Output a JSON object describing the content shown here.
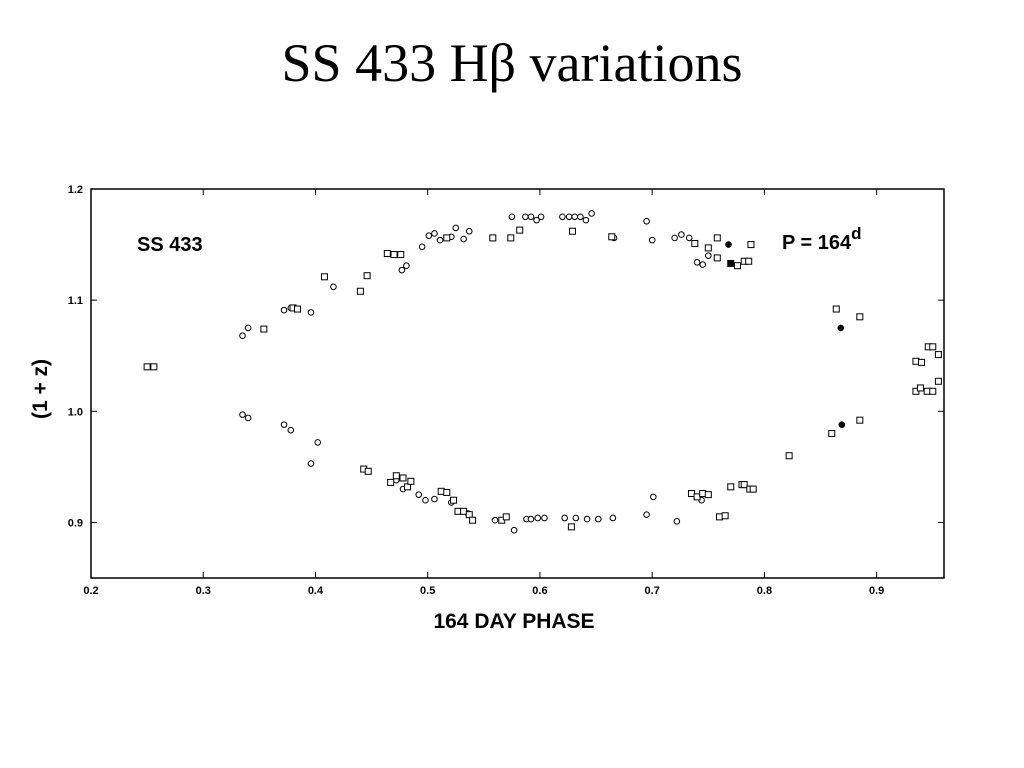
{
  "slide": {
    "title": "SS 433 Hβ variations"
  },
  "chart_data": {
    "type": "scatter",
    "title": "SS 433 Hβ variations",
    "xlabel": "164 DAY PHASE",
    "ylabel": "(1 + z)",
    "xlim": [
      0.2,
      0.96
    ],
    "ylim": [
      0.85,
      1.2
    ],
    "x_ticks": [
      0.2,
      0.3,
      0.4,
      0.5,
      0.6,
      0.7,
      0.8,
      0.9
    ],
    "x_tick_labels": [
      "0.2",
      "0.3",
      "0.4",
      "0.5",
      "0.6",
      "0.7",
      "0.8",
      "0.9"
    ],
    "y_ticks": [
      0.9,
      1.0,
      1.1,
      1.2
    ],
    "y_tick_labels": [
      "0.9",
      "1.0",
      "1.1",
      "1.2"
    ],
    "grid": false,
    "annotations": {
      "object": "SS 433",
      "period": "P = 164",
      "period_sup": "d"
    },
    "series": [
      {
        "marker": "circle",
        "points": [
          [
            0.335,
            1.068
          ],
          [
            0.34,
            1.075
          ],
          [
            0.372,
            1.091
          ],
          [
            0.378,
            1.093
          ],
          [
            0.396,
            1.089
          ],
          [
            0.416,
            1.112
          ],
          [
            0.477,
            1.127
          ],
          [
            0.481,
            1.131
          ],
          [
            0.495,
            1.148
          ],
          [
            0.501,
            1.158
          ],
          [
            0.506,
            1.16
          ],
          [
            0.511,
            1.154
          ],
          [
            0.521,
            1.157
          ],
          [
            0.525,
            1.165
          ],
          [
            0.532,
            1.155
          ],
          [
            0.537,
            1.162
          ],
          [
            0.575,
            1.175
          ],
          [
            0.587,
            1.175
          ],
          [
            0.592,
            1.175
          ],
          [
            0.597,
            1.172
          ],
          [
            0.601,
            1.175
          ],
          [
            0.62,
            1.175
          ],
          [
            0.626,
            1.175
          ],
          [
            0.631,
            1.175
          ],
          [
            0.636,
            1.175
          ],
          [
            0.641,
            1.172
          ],
          [
            0.646,
            1.178
          ],
          [
            0.666,
            1.156
          ],
          [
            0.695,
            1.171
          ],
          [
            0.7,
            1.154
          ],
          [
            0.72,
            1.156
          ],
          [
            0.726,
            1.159
          ],
          [
            0.733,
            1.156
          ],
          [
            0.74,
            1.134
          ],
          [
            0.745,
            1.132
          ],
          [
            0.75,
            1.14
          ],
          [
            0.335,
            0.997
          ],
          [
            0.34,
            0.994
          ],
          [
            0.372,
            0.988
          ],
          [
            0.378,
            0.983
          ],
          [
            0.396,
            0.953
          ],
          [
            0.402,
            0.972
          ],
          [
            0.472,
            0.938
          ],
          [
            0.478,
            0.93
          ],
          [
            0.492,
            0.925
          ],
          [
            0.498,
            0.92
          ],
          [
            0.506,
            0.921
          ],
          [
            0.521,
            0.918
          ],
          [
            0.536,
            0.908
          ],
          [
            0.56,
            0.902
          ],
          [
            0.577,
            0.893
          ],
          [
            0.588,
            0.903
          ],
          [
            0.592,
            0.903
          ],
          [
            0.598,
            0.904
          ],
          [
            0.604,
            0.904
          ],
          [
            0.622,
            0.904
          ],
          [
            0.632,
            0.904
          ],
          [
            0.642,
            0.903
          ],
          [
            0.652,
            0.903
          ],
          [
            0.665,
            0.904
          ],
          [
            0.695,
            0.907
          ],
          [
            0.701,
            0.923
          ],
          [
            0.722,
            0.901
          ],
          [
            0.744,
            0.92
          ]
        ]
      },
      {
        "marker": "square",
        "points": [
          [
            0.25,
            1.04
          ],
          [
            0.256,
            1.04
          ],
          [
            0.354,
            1.074
          ],
          [
            0.38,
            1.093
          ],
          [
            0.384,
            1.092
          ],
          [
            0.408,
            1.121
          ],
          [
            0.44,
            1.108
          ],
          [
            0.446,
            1.122
          ],
          [
            0.464,
            1.142
          ],
          [
            0.47,
            1.141
          ],
          [
            0.476,
            1.141
          ],
          [
            0.517,
            1.156
          ],
          [
            0.558,
            1.156
          ],
          [
            0.574,
            1.156
          ],
          [
            0.582,
            1.163
          ],
          [
            0.629,
            1.162
          ],
          [
            0.664,
            1.157
          ],
          [
            0.738,
            1.151
          ],
          [
            0.75,
            1.147
          ],
          [
            0.758,
            1.156
          ],
          [
            0.77,
            1.133
          ],
          [
            0.776,
            1.131
          ],
          [
            0.782,
            1.135
          ],
          [
            0.786,
            1.135
          ],
          [
            0.788,
            1.15
          ],
          [
            0.758,
            1.138
          ],
          [
            0.864,
            1.092
          ],
          [
            0.885,
            1.085
          ],
          [
            0.935,
            1.045
          ],
          [
            0.94,
            1.044
          ],
          [
            0.946,
            1.058
          ],
          [
            0.95,
            1.058
          ],
          [
            0.955,
            1.051
          ],
          [
            0.935,
            1.018
          ],
          [
            0.939,
            1.021
          ],
          [
            0.945,
            1.018
          ],
          [
            0.95,
            1.018
          ],
          [
            0.955,
            1.027
          ],
          [
            0.443,
            0.948
          ],
          [
            0.447,
            0.946
          ],
          [
            0.467,
            0.936
          ],
          [
            0.472,
            0.942
          ],
          [
            0.478,
            0.94
          ],
          [
            0.482,
            0.932
          ],
          [
            0.485,
            0.937
          ],
          [
            0.512,
            0.928
          ],
          [
            0.517,
            0.927
          ],
          [
            0.523,
            0.92
          ],
          [
            0.527,
            0.91
          ],
          [
            0.532,
            0.91
          ],
          [
            0.537,
            0.907
          ],
          [
            0.54,
            0.902
          ],
          [
            0.566,
            0.902
          ],
          [
            0.57,
            0.905
          ],
          [
            0.628,
            0.896
          ],
          [
            0.735,
            0.926
          ],
          [
            0.74,
            0.923
          ],
          [
            0.745,
            0.926
          ],
          [
            0.75,
            0.925
          ],
          [
            0.76,
            0.905
          ],
          [
            0.765,
            0.906
          ],
          [
            0.77,
            0.932
          ],
          [
            0.78,
            0.934
          ],
          [
            0.782,
            0.934
          ],
          [
            0.787,
            0.93
          ],
          [
            0.79,
            0.93
          ],
          [
            0.822,
            0.96
          ],
          [
            0.86,
            0.98
          ],
          [
            0.885,
            0.992
          ]
        ]
      },
      {
        "marker": "filled-circle",
        "points": [
          [
            0.77,
            1.133
          ],
          [
            0.768,
            1.15
          ],
          [
            0.868,
            1.075
          ],
          [
            0.869,
            0.988
          ]
        ]
      }
    ]
  }
}
